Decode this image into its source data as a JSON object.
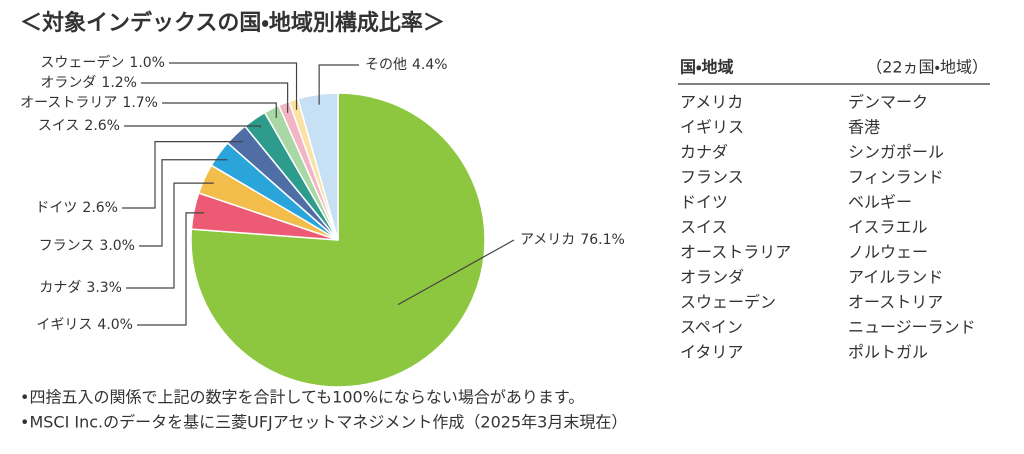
{
  "chart_data": {
    "type": "pie",
    "title": "＜対象インデックスの国・地域別構成比率＞",
    "categories": [
      "アメリカ",
      "イギリス",
      "カナダ",
      "フランス",
      "ドイツ",
      "スイス",
      "オーストラリア",
      "オランダ",
      "スウェーデン",
      "その他"
    ],
    "values": [
      76.1,
      4.0,
      3.3,
      3.0,
      2.6,
      2.6,
      1.7,
      1.2,
      1.0,
      4.4
    ],
    "value_labels": [
      "76.1%",
      "4.0%",
      "3.3%",
      "3.0%",
      "2.6%",
      "2.6%",
      "1.7%",
      "1.2%",
      "1.0%",
      "4.4%"
    ],
    "colors": [
      "#8dc63f",
      "#ec5b73",
      "#f2bd4a",
      "#2aa5dc",
      "#4f6ea5",
      "#2e9c8c",
      "#a9d7a6",
      "#f3b5c6",
      "#f9e2a4",
      "#c7e0f4"
    ]
  },
  "table": {
    "header": [
      "国・地域",
      "（22ヵ国・地域）"
    ],
    "columns": [
      [
        "アメリカ",
        "イギリス",
        "カナダ",
        "フランス",
        "ドイツ",
        "スイス",
        "オーストラリア",
        "オランダ",
        "スウェーデン",
        "スペイン",
        "イタリア"
      ],
      [
        "デンマーク",
        "香港",
        "シンガポール",
        "フィンランド",
        "ベルギー",
        "イスラエル",
        "ノルウェー",
        "アイルランド",
        "オーストリア",
        "ニュージーランド",
        "ポルトガル"
      ]
    ]
  },
  "notes": [
    "•四捨五入の関係で上記の数字を合計しても100%にならない場合があります。",
    "•MSCI Inc.のデータを基に三菱UFJアセットマネジメント作成（2025年3月末現在）"
  ]
}
